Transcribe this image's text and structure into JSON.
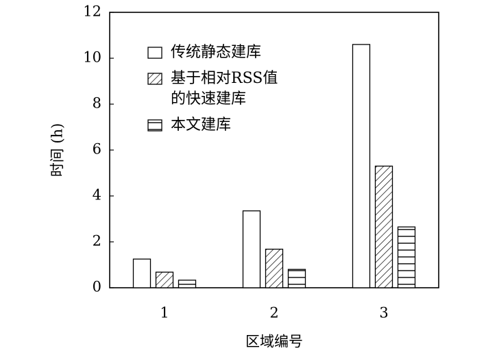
{
  "chart_data": {
    "type": "bar",
    "xlabel": "区域编号",
    "ylabel": "时间 (h)",
    "categories": [
      "1",
      "2",
      "3"
    ],
    "series": [
      {
        "name": "传统静态建库",
        "color": "#000000",
        "pattern": "none",
        "values": [
          1.25,
          3.35,
          10.6
        ]
      },
      {
        "name": "基于相对RSS值\n的快速建库",
        "color": "#000000",
        "pattern": "diagonal",
        "values": [
          0.68,
          1.68,
          5.3
        ]
      },
      {
        "name": "本文建库",
        "color": "#000000",
        "pattern": "horizontal",
        "values": [
          0.33,
          0.8,
          2.65
        ]
      }
    ],
    "ylim": [
      0,
      12
    ],
    "yticks": [
      0,
      2,
      4,
      6,
      8,
      10,
      12
    ],
    "grid": false
  }
}
